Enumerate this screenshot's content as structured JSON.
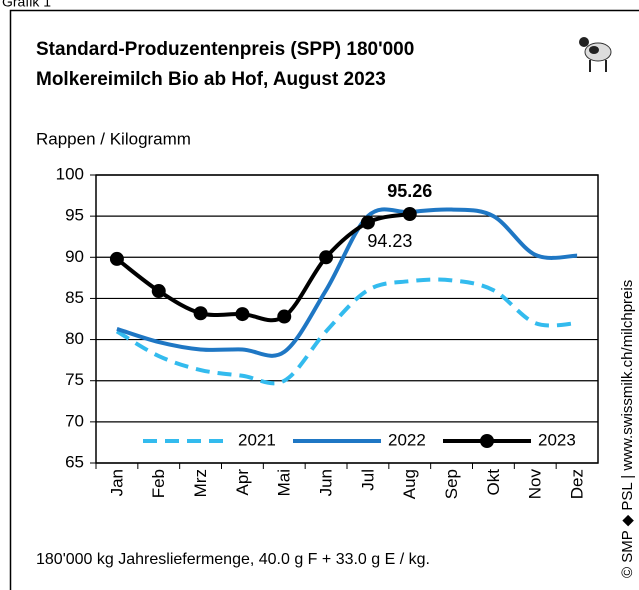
{
  "page_label": "Grafik 1",
  "chart_data": {
    "type": "line",
    "title": [
      "Standard-Produzentenpreis (SPP) 180'000",
      "Molkereimilch Bio ab Hof, August 2023"
    ],
    "y_label": "Rappen / Kilogramm",
    "footnote": "180'000 kg Jahresliefermenge,  40.0 g F + 33.0 g E / kg.",
    "source": "© SMP ◆ PSL | www.swissmilk.ch/milchpreis",
    "categories": [
      "Jan",
      "Feb",
      "Mrz",
      "Apr",
      "Mai",
      "Jun",
      "Jul",
      "Aug",
      "Sep",
      "Okt",
      "Nov",
      "Dez"
    ],
    "series": [
      {
        "name": "2021",
        "color": "#33bbee",
        "dash": true,
        "values": [
          81,
          78,
          76.3,
          75.6,
          75,
          81,
          86,
          87.1,
          87.2,
          86,
          82,
          82
        ]
      },
      {
        "name": "2022",
        "color": "#1f77c4",
        "values": [
          81.3,
          79.7,
          78.8,
          78.8,
          78.5,
          86,
          95,
          95.5,
          95.8,
          95,
          90.3,
          90.2
        ]
      },
      {
        "name": "2023",
        "color": "#000000",
        "markers": true,
        "values": [
          89.8,
          85.9,
          83.2,
          83.1,
          82.8,
          90,
          94.23,
          95.26,
          null,
          null,
          null,
          null
        ],
        "value_labels": [
          null,
          null,
          null,
          null,
          null,
          null,
          "94.23",
          "95.26",
          null,
          null,
          null,
          null
        ]
      }
    ],
    "ylim": [
      65,
      100
    ],
    "yticks": [
      65,
      70,
      75,
      80,
      85,
      90,
      95,
      100
    ],
    "grid": true
  }
}
